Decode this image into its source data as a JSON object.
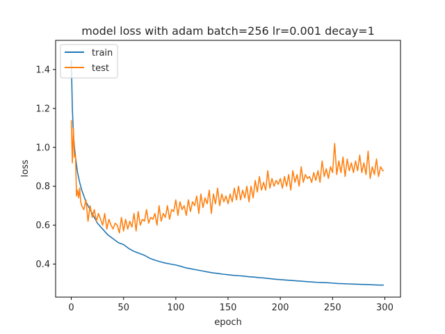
{
  "chart_data": {
    "type": "line",
    "title": "model loss with adam batch=256 lr=0.001 decay=1",
    "xlabel": "epoch",
    "ylabel": "loss",
    "xlim": [
      -15,
      315
    ],
    "ylim": [
      0.23,
      1.55
    ],
    "xticks": [
      0,
      50,
      100,
      150,
      200,
      250,
      300
    ],
    "yticks": [
      0.4,
      0.6,
      0.8,
      1.0,
      1.2,
      1.4
    ],
    "ytick_labels": [
      "0.4",
      "0.6",
      "0.8",
      "1.0",
      "1.2",
      "1.4"
    ],
    "grid": false,
    "legend_position": "top-left",
    "series": [
      {
        "name": "train",
        "color": "#1f77b4",
        "x": [
          0,
          1,
          2,
          3,
          4,
          5,
          6,
          8,
          10,
          12,
          14,
          16,
          18,
          20,
          25,
          30,
          35,
          40,
          45,
          50,
          55,
          60,
          65,
          70,
          75,
          80,
          85,
          90,
          95,
          100,
          105,
          110,
          115,
          120,
          125,
          130,
          135,
          140,
          145,
          150,
          155,
          160,
          165,
          170,
          175,
          180,
          185,
          190,
          195,
          200,
          205,
          210,
          215,
          220,
          225,
          230,
          235,
          240,
          245,
          250,
          255,
          260,
          265,
          270,
          275,
          280,
          285,
          290,
          295,
          299
        ],
        "values": [
          1.45,
          1.2,
          1.07,
          1.0,
          0.95,
          0.91,
          0.87,
          0.82,
          0.78,
          0.75,
          0.72,
          0.7,
          0.68,
          0.66,
          0.61,
          0.58,
          0.55,
          0.53,
          0.51,
          0.5,
          0.48,
          0.465,
          0.455,
          0.445,
          0.43,
          0.42,
          0.412,
          0.405,
          0.4,
          0.395,
          0.388,
          0.38,
          0.375,
          0.37,
          0.365,
          0.36,
          0.355,
          0.352,
          0.348,
          0.345,
          0.342,
          0.34,
          0.338,
          0.335,
          0.333,
          0.33,
          0.328,
          0.325,
          0.322,
          0.32,
          0.318,
          0.316,
          0.314,
          0.312,
          0.31,
          0.308,
          0.306,
          0.305,
          0.304,
          0.302,
          0.3,
          0.299,
          0.298,
          0.297,
          0.296,
          0.295,
          0.294,
          0.293,
          0.292,
          0.292
        ]
      },
      {
        "name": "test",
        "color": "#ff7f0e",
        "x": [
          0,
          1,
          2,
          3,
          4,
          5,
          6,
          7,
          8,
          9,
          10,
          12,
          14,
          16,
          18,
          20,
          22,
          24,
          26,
          28,
          30,
          32,
          34,
          36,
          38,
          40,
          42,
          44,
          46,
          48,
          50,
          52,
          54,
          56,
          58,
          60,
          62,
          64,
          66,
          68,
          70,
          72,
          74,
          76,
          78,
          80,
          82,
          84,
          86,
          88,
          90,
          92,
          94,
          96,
          98,
          100,
          102,
          104,
          106,
          108,
          110,
          112,
          114,
          116,
          118,
          120,
          122,
          124,
          126,
          128,
          130,
          132,
          134,
          136,
          138,
          140,
          142,
          144,
          146,
          148,
          150,
          152,
          154,
          156,
          158,
          160,
          162,
          164,
          166,
          168,
          170,
          172,
          174,
          176,
          178,
          180,
          182,
          184,
          186,
          188,
          190,
          192,
          194,
          196,
          198,
          200,
          202,
          204,
          206,
          208,
          210,
          212,
          214,
          216,
          218,
          220,
          222,
          224,
          226,
          228,
          230,
          232,
          234,
          236,
          238,
          240,
          242,
          244,
          246,
          248,
          250,
          252,
          254,
          256,
          258,
          260,
          262,
          264,
          266,
          268,
          270,
          272,
          274,
          276,
          278,
          280,
          282,
          284,
          286,
          288,
          290,
          292,
          294,
          296,
          298,
          299
        ],
        "values": [
          1.14,
          0.92,
          1.1,
          0.95,
          0.96,
          0.75,
          0.78,
          0.74,
          0.79,
          0.72,
          0.7,
          0.68,
          0.73,
          0.62,
          0.7,
          0.64,
          0.68,
          0.62,
          0.66,
          0.63,
          0.6,
          0.66,
          0.58,
          0.63,
          0.6,
          0.58,
          0.61,
          0.6,
          0.56,
          0.64,
          0.57,
          0.63,
          0.58,
          0.62,
          0.59,
          0.66,
          0.57,
          0.67,
          0.6,
          0.63,
          0.62,
          0.68,
          0.61,
          0.64,
          0.63,
          0.66,
          0.6,
          0.7,
          0.62,
          0.66,
          0.64,
          0.7,
          0.63,
          0.68,
          0.67,
          0.73,
          0.65,
          0.72,
          0.68,
          0.7,
          0.65,
          0.73,
          0.67,
          0.72,
          0.7,
          0.75,
          0.66,
          0.76,
          0.69,
          0.74,
          0.71,
          0.78,
          0.66,
          0.76,
          0.71,
          0.79,
          0.7,
          0.76,
          0.72,
          0.75,
          0.71,
          0.76,
          0.72,
          0.79,
          0.73,
          0.8,
          0.73,
          0.78,
          0.74,
          0.8,
          0.72,
          0.8,
          0.74,
          0.83,
          0.77,
          0.85,
          0.78,
          0.82,
          0.78,
          0.88,
          0.79,
          0.84,
          0.8,
          0.83,
          0.81,
          0.84,
          0.79,
          0.85,
          0.8,
          0.86,
          0.78,
          0.88,
          0.82,
          0.86,
          0.8,
          0.9,
          0.82,
          0.86,
          0.84,
          0.85,
          0.82,
          0.87,
          0.83,
          0.88,
          0.82,
          0.93,
          0.85,
          0.89,
          0.84,
          0.9,
          0.87,
          1.02,
          0.86,
          0.93,
          0.87,
          0.95,
          0.85,
          0.94,
          0.88,
          0.92,
          0.87,
          0.93,
          0.88,
          0.96,
          0.87,
          0.92,
          0.86,
          0.98,
          0.84,
          0.9,
          0.86,
          0.94,
          0.85,
          0.9,
          0.88,
          0.88
        ]
      }
    ]
  }
}
